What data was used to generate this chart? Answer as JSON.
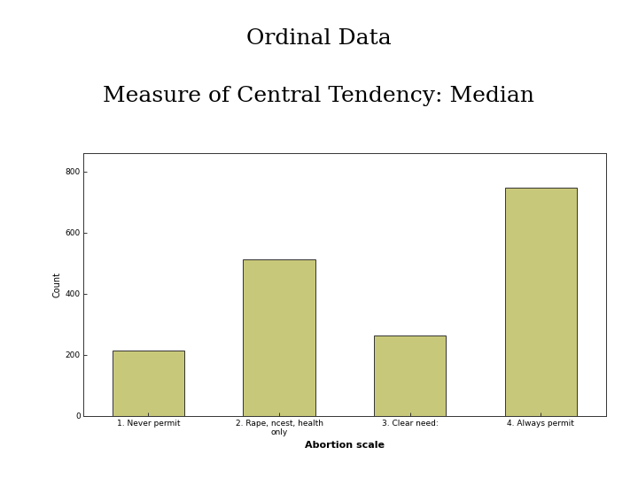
{
  "title_line1": "Ordinal Data",
  "title_line2": "Measure of Central Tendency: Median",
  "title_fontsize": 18,
  "title_font": "DejaVu Serif",
  "xlabel": "Abortion scale",
  "ylabel": "Count",
  "xlabel_fontsize": 8,
  "ylabel_fontsize": 7,
  "categories": [
    "1. Never permit",
    "2. Rape, ncest, health\nonly",
    "3. Clear need:",
    "4. Always permit"
  ],
  "values": [
    213,
    512,
    262,
    746
  ],
  "bar_color": "#C8C87A",
  "bar_edgecolor": "#333333",
  "bar_linewidth": 0.7,
  "ylim": [
    0,
    860
  ],
  "yticks": [
    0,
    200,
    400,
    600,
    800
  ],
  "ytick_labels": [
    "0",
    "200",
    "400",
    "600",
    "800"
  ],
  "tick_fontsize": 6.5,
  "background_color": "#ffffff",
  "plot_bg_color": "#ffffff",
  "bar_width": 0.55,
  "fig_width": 7.2,
  "fig_height": 5.4
}
